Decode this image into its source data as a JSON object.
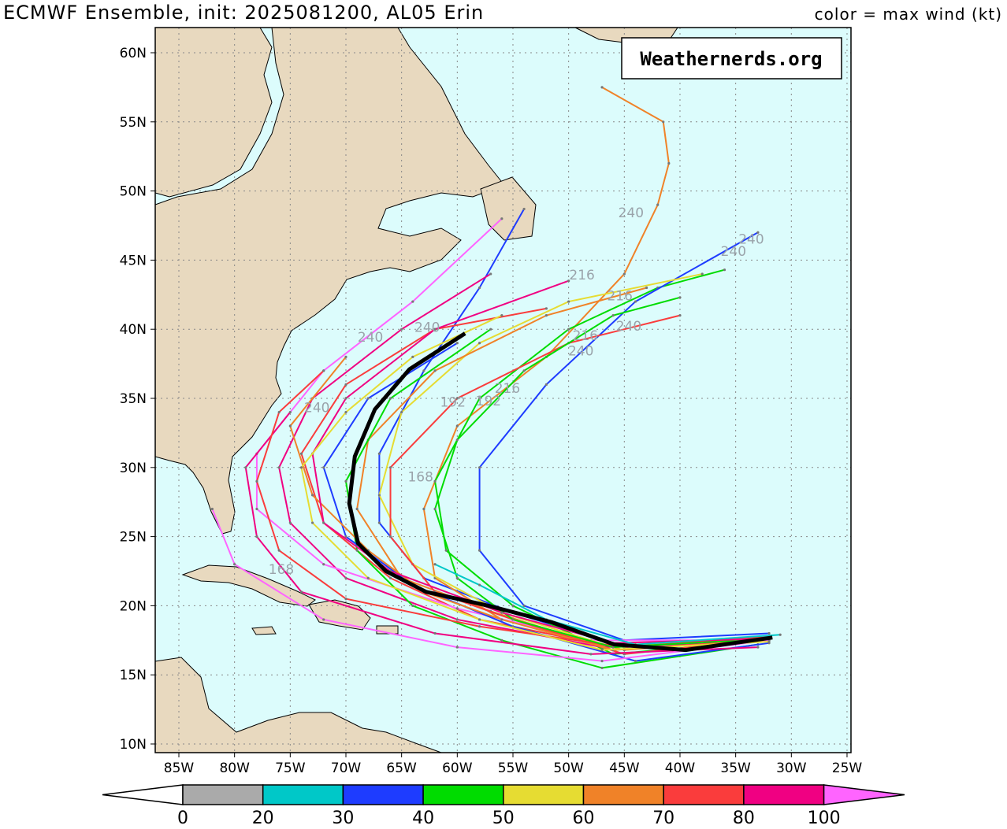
{
  "title": "ECMWF Ensemble, init: 2025081200, AL05 Erin",
  "color_legend_title": "color = max wind (kt)",
  "watermark": "Weathernerds.org",
  "colors": {
    "ocean": "#dcfcfc",
    "land": "#e8d9bf"
  },
  "axes": {
    "lon_labels": [
      "85W",
      "80W",
      "75W",
      "70W",
      "65W",
      "60W",
      "55W",
      "50W",
      "45W",
      "40W",
      "35W",
      "30W",
      "25W"
    ],
    "lat_labels": [
      "60N",
      "55N",
      "50N",
      "45N",
      "40N",
      "35N",
      "30N",
      "25N",
      "20N",
      "15N",
      "10N"
    ],
    "grid": true
  },
  "colorbar": {
    "labels": [
      "0",
      "20",
      "30",
      "40",
      "50",
      "60",
      "70",
      "80",
      "100"
    ],
    "colors": [
      "#aaaaaa",
      "#00c8c8",
      "#1e3cff",
      "#00dc00",
      "#e6dc32",
      "#f08228",
      "#fa3c3c",
      "#f00082",
      "#ff64ff"
    ]
  },
  "mean_track": [
    [
      -31.7,
      17.7
    ],
    [
      -39.5,
      16.8
    ],
    [
      -45.9,
      17.2
    ],
    [
      -51.5,
      18.8
    ],
    [
      -57.2,
      20.0
    ],
    [
      -62.8,
      21.0
    ],
    [
      -66.4,
      22.5
    ],
    [
      -68.9,
      24.5
    ],
    [
      -69.7,
      27.4
    ],
    [
      -69.2,
      30.8
    ],
    [
      -67.4,
      34.2
    ],
    [
      -64.3,
      37.1
    ],
    [
      -59.3,
      39.7
    ]
  ],
  "ensemble_tracks": [
    {
      "color": "#1e3cff",
      "points": [
        [
          -32,
          17.8
        ],
        [
          -45,
          17
        ],
        [
          -55,
          19.5
        ],
        [
          -63,
          22
        ],
        [
          -67,
          26
        ],
        [
          -67,
          31
        ],
        [
          -63,
          37
        ],
        [
          -58,
          43
        ],
        [
          -54,
          48.7
        ]
      ]
    },
    {
      "color": "#f08228",
      "points": [
        [
          -32,
          17.6
        ],
        [
          -45,
          16.8
        ],
        [
          -56,
          19
        ],
        [
          -62,
          22
        ],
        [
          -63,
          27
        ],
        [
          -60,
          33
        ],
        [
          -52,
          38
        ],
        [
          -45,
          44
        ],
        [
          -42,
          49
        ],
        [
          -41,
          52
        ],
        [
          -41.5,
          55
        ],
        [
          -47,
          57.5
        ]
      ]
    },
    {
      "color": "#00dc00",
      "points": [
        [
          -32,
          17.5
        ],
        [
          -46,
          16.5
        ],
        [
          -55,
          20
        ],
        [
          -61,
          24
        ],
        [
          -62,
          29
        ],
        [
          -58,
          35
        ],
        [
          -50,
          40
        ],
        [
          -42,
          43
        ],
        [
          -36,
          44.3
        ]
      ]
    },
    {
      "color": "#1e3cff",
      "points": [
        [
          -32,
          18
        ],
        [
          -45,
          17.5
        ],
        [
          -54,
          20
        ],
        [
          -58,
          24
        ],
        [
          -58,
          30
        ],
        [
          -52,
          36
        ],
        [
          -44,
          42
        ],
        [
          -33,
          47
        ]
      ]
    },
    {
      "color": "#fa3c3c",
      "points": [
        [
          -33,
          17.6
        ],
        [
          -46,
          17
        ],
        [
          -58,
          19
        ],
        [
          -66,
          22
        ],
        [
          -72,
          26
        ],
        [
          -74,
          31
        ],
        [
          -70,
          36
        ],
        [
          -62,
          40
        ],
        [
          -52,
          41.5
        ]
      ]
    },
    {
      "color": "#f00082",
      "points": [
        [
          -33,
          17.4
        ],
        [
          -47,
          17
        ],
        [
          -60,
          19
        ],
        [
          -70,
          22
        ],
        [
          -75,
          26
        ],
        [
          -76,
          30
        ],
        [
          -73,
          35
        ],
        [
          -65,
          40
        ],
        [
          -57,
          44
        ]
      ]
    },
    {
      "color": "#ff64ff",
      "points": [
        [
          -34,
          17.5
        ],
        [
          -48,
          17.5
        ],
        [
          -60,
          19.8
        ],
        [
          -72,
          23
        ],
        [
          -78,
          27
        ],
        [
          -78,
          31
        ],
        [
          -72,
          37
        ],
        [
          -64,
          42
        ],
        [
          -56,
          48
        ]
      ]
    },
    {
      "color": "#e6dc32",
      "points": [
        [
          -32,
          17.7
        ],
        [
          -46,
          17
        ],
        [
          -56,
          19.5
        ],
        [
          -64,
          23
        ],
        [
          -67,
          28
        ],
        [
          -65,
          34
        ],
        [
          -58,
          39
        ],
        [
          -50,
          42
        ],
        [
          -38,
          44
        ]
      ]
    },
    {
      "color": "#f08228",
      "points": [
        [
          -32,
          17.5
        ],
        [
          -46,
          16.8
        ],
        [
          -57,
          19.6
        ],
        [
          -65,
          22
        ],
        [
          -69,
          27
        ],
        [
          -68,
          32
        ],
        [
          -62,
          37
        ],
        [
          -52,
          41
        ],
        [
          -43,
          43
        ]
      ]
    },
    {
      "color": "#fa3c3c",
      "points": [
        [
          -32,
          17.6
        ],
        [
          -45,
          16.5
        ],
        [
          -55,
          19
        ],
        [
          -62,
          21
        ],
        [
          -66,
          25
        ],
        [
          -66,
          30
        ],
        [
          -60,
          35
        ],
        [
          -50,
          39
        ],
        [
          -40,
          41
        ]
      ]
    },
    {
      "color": "#00dc00",
      "points": [
        [
          -33,
          17.2
        ],
        [
          -47,
          15.5
        ],
        [
          -56,
          17.5
        ],
        [
          -64,
          20
        ],
        [
          -69,
          24
        ],
        [
          -70,
          29
        ],
        [
          -66,
          35
        ],
        [
          -57,
          40
        ]
      ]
    },
    {
      "color": "#1e3cff",
      "points": [
        [
          -32,
          17.3
        ],
        [
          -44,
          16
        ],
        [
          -55,
          18.5
        ],
        [
          -64,
          21.5
        ],
        [
          -70,
          25
        ],
        [
          -72,
          30
        ],
        [
          -68,
          35
        ],
        [
          -60,
          39
        ]
      ]
    },
    {
      "color": "#f00082",
      "points": [
        [
          -33,
          17
        ],
        [
          -48,
          16.5
        ],
        [
          -62,
          18
        ],
        [
          -74,
          21
        ],
        [
          -78,
          25
        ],
        [
          -79,
          30
        ],
        [
          -75,
          34
        ]
      ]
    },
    {
      "color": "#f08228",
      "points": [
        [
          -32,
          17.5
        ],
        [
          -46,
          16.8
        ],
        [
          -56,
          19
        ],
        [
          -63,
          21
        ],
        [
          -68,
          24
        ],
        [
          -73,
          28
        ],
        [
          -75,
          33
        ],
        [
          -70,
          38
        ]
      ]
    },
    {
      "color": "#ff64ff",
      "points": [
        [
          -32,
          17.5
        ],
        [
          -47,
          16
        ],
        [
          -60,
          17
        ],
        [
          -72,
          19
        ],
        [
          -80,
          23
        ],
        [
          -82,
          27
        ]
      ]
    },
    {
      "color": "#fa3c3c",
      "points": [
        [
          -32,
          17.8
        ],
        [
          -45,
          17
        ],
        [
          -58,
          18.5
        ],
        [
          -70,
          20.5
        ],
        [
          -76,
          24
        ],
        [
          -78,
          29
        ],
        [
          -76,
          34
        ],
        [
          -72,
          37
        ]
      ]
    },
    {
      "color": "#00dc00",
      "points": [
        [
          -32,
          17.6
        ],
        [
          -46,
          17
        ],
        [
          -55,
          19
        ],
        [
          -60,
          22
        ],
        [
          -62,
          27
        ],
        [
          -60,
          32
        ],
        [
          -54,
          37
        ],
        [
          -46,
          41
        ],
        [
          -40,
          42.3
        ]
      ]
    },
    {
      "color": "#f00082",
      "points": [
        [
          -33,
          17.6
        ],
        [
          -46,
          17.3
        ],
        [
          -56,
          19.5
        ],
        [
          -66,
          22.5
        ],
        [
          -72,
          26
        ],
        [
          -73,
          31
        ],
        [
          -70,
          35
        ],
        [
          -62,
          40
        ],
        [
          -50,
          43.5
        ]
      ]
    },
    {
      "color": "#00c8c8",
      "points": [
        [
          -31,
          17.9
        ],
        [
          -44,
          17.2
        ],
        [
          -52,
          19
        ],
        [
          -58,
          21.5
        ],
        [
          -62,
          23
        ]
      ]
    },
    {
      "color": "#e6dc32",
      "points": [
        [
          -32,
          17.4
        ],
        [
          -47,
          16.8
        ],
        [
          -58,
          19
        ],
        [
          -68,
          22
        ],
        [
          -73,
          26
        ],
        [
          -74,
          30
        ],
        [
          -70,
          34
        ],
        [
          -64,
          38
        ],
        [
          -56,
          41
        ]
      ]
    }
  ],
  "hour_labels": [
    {
      "text": "240",
      "lon": -44.4,
      "lat": 48.1
    },
    {
      "text": "240",
      "lon": -33.6,
      "lat": 46.2
    },
    {
      "text": "240",
      "lon": -35.2,
      "lat": 45.3
    },
    {
      "text": "216",
      "lon": -48.8,
      "lat": 43.6
    },
    {
      "text": "216",
      "lon": -45.4,
      "lat": 42.1
    },
    {
      "text": "240",
      "lon": -44.6,
      "lat": 39.9
    },
    {
      "text": "216",
      "lon": -48.5,
      "lat": 39.2
    },
    {
      "text": "240",
      "lon": -48.9,
      "lat": 38.1
    },
    {
      "text": "240",
      "lon": -67.8,
      "lat": 39.1
    },
    {
      "text": "240",
      "lon": -62.7,
      "lat": 39.8
    },
    {
      "text": "192",
      "lon": -57.2,
      "lat": 34.5
    },
    {
      "text": "192",
      "lon": -60.4,
      "lat": 34.4
    },
    {
      "text": "216",
      "lon": -55.5,
      "lat": 35.4
    },
    {
      "text": "168",
      "lon": -63.3,
      "lat": 29.0
    },
    {
      "text": "168",
      "lon": -75.8,
      "lat": 22.3
    },
    {
      "text": "240",
      "lon": -72.6,
      "lat": 34.0
    }
  ]
}
